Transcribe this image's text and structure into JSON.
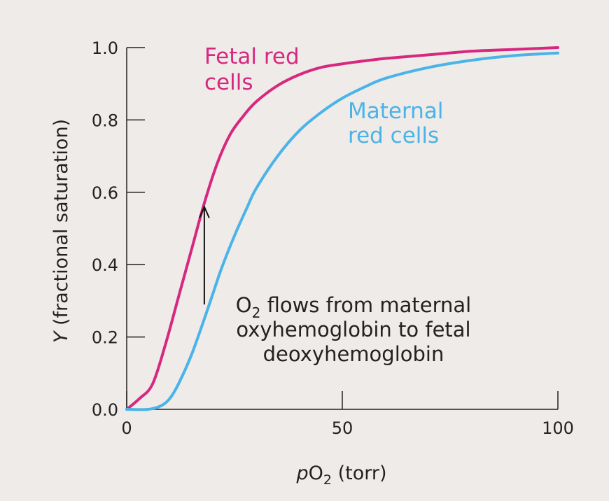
{
  "chart_data": {
    "type": "line",
    "title": "",
    "xlabel": {
      "italic": "p",
      "base": "O",
      "sub": "2",
      "rest": " (torr)"
    },
    "ylabel": {
      "italic": "Y",
      "rest": " (fractional saturation)"
    },
    "xlim": [
      0,
      100
    ],
    "ylim": [
      0,
      1.0
    ],
    "x_ticks": [
      0,
      50,
      100
    ],
    "x_tick_labels": [
      "0",
      "50",
      "100"
    ],
    "y_ticks": [
      0.0,
      0.2,
      0.4,
      0.6,
      0.8,
      1.0
    ],
    "y_tick_labels": [
      "0.0",
      "0.2",
      "0.4",
      "0.6",
      "0.8",
      "1.0"
    ],
    "series": [
      {
        "name": "Fetal red cells",
        "label_lines": [
          "Fetal red",
          "cells"
        ],
        "color": "#d6287f",
        "x": [
          0,
          3,
          6,
          9,
          12,
          15,
          18,
          21,
          24,
          27,
          30,
          35,
          40,
          45,
          50,
          55,
          60,
          70,
          80,
          90,
          100
        ],
        "y": [
          0.0,
          0.03,
          0.07,
          0.18,
          0.31,
          0.44,
          0.57,
          0.68,
          0.76,
          0.81,
          0.85,
          0.895,
          0.925,
          0.945,
          0.955,
          0.963,
          0.97,
          0.98,
          0.99,
          0.995,
          1.0
        ]
      },
      {
        "name": "Maternal red cells",
        "label_lines": [
          "Maternal",
          "red cells"
        ],
        "color": "#4ab3e8",
        "x": [
          0,
          5,
          8,
          10,
          12,
          15,
          18,
          20,
          22,
          25,
          28,
          30,
          35,
          40,
          45,
          50,
          55,
          60,
          70,
          80,
          90,
          100
        ],
        "y": [
          0.0,
          0.0,
          0.01,
          0.03,
          0.07,
          0.15,
          0.25,
          0.32,
          0.39,
          0.48,
          0.56,
          0.61,
          0.7,
          0.77,
          0.82,
          0.86,
          0.89,
          0.915,
          0.945,
          0.965,
          0.978,
          0.985
        ]
      }
    ],
    "annotation": {
      "arrow_x": 18,
      "arrow_from_y": 0.29,
      "arrow_to_y": 0.56,
      "text_lines": [
        {
          "pre": "O",
          "sub": "2",
          "post": " flows from maternal"
        },
        {
          "pre": "oxyhemoglobin to fetal",
          "sub": "",
          "post": ""
        },
        {
          "pre": "deoxyhemoglobin",
          "sub": "",
          "post": ""
        }
      ]
    }
  }
}
